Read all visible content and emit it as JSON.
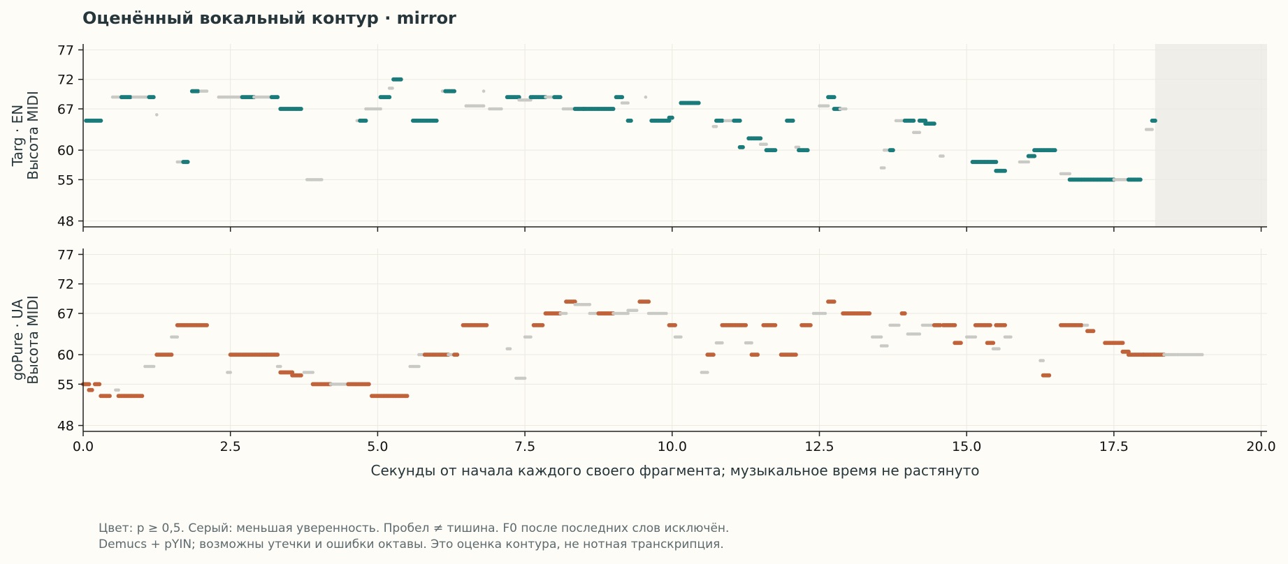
{
  "title": "Оценённый вокальный контур · mirror",
  "xlabel": "Секунды от начала каждого своего фрагмента; музыкальное время не растянуто",
  "footnote": [
    "Цвет: p ≥ 0,5. Серый: меньшая уверенность. Пробел ≠ тишина. F0 после последних слов исключён.",
    "Demucs + pYIN; возможны утечки и ошибки октавы. Это оценка контура, не нотная транскрипция."
  ],
  "chart_data": [
    {
      "type": "scatter",
      "ylabel": [
        "Targ · EN",
        "Высота MIDI"
      ],
      "xlim": [
        0,
        20.1
      ],
      "ylim": [
        47,
        78
      ],
      "xticks": [
        0,
        2.5,
        5,
        7.5,
        10,
        12.5,
        15,
        17.5,
        20
      ],
      "yticks": [
        48,
        55,
        60,
        67,
        72,
        77
      ],
      "confident_color": "#1a7b7a",
      "low_conf_color": "#c9c9c5",
      "excluded_region": {
        "x": [
          18.2,
          20.1
        ],
        "color": "#efeee9"
      },
      "segments": [
        {
          "x0": 0.05,
          "x1": 0.3,
          "y": 65,
          "c": 1
        },
        {
          "x0": 0.5,
          "x1": 0.6,
          "y": 69,
          "c": 0
        },
        {
          "x0": 0.65,
          "x1": 0.8,
          "y": 69,
          "c": 1
        },
        {
          "x0": 0.85,
          "x1": 1.1,
          "y": 69,
          "c": 0
        },
        {
          "x0": 1.12,
          "x1": 1.2,
          "y": 69,
          "c": 1
        },
        {
          "x0": 1.25,
          "x1": 1.27,
          "y": 66,
          "c": 0
        },
        {
          "x0": 1.6,
          "x1": 1.68,
          "y": 58,
          "c": 0
        },
        {
          "x0": 1.7,
          "x1": 1.78,
          "y": 58,
          "c": 1
        },
        {
          "x0": 1.85,
          "x1": 1.97,
          "y": 70,
          "c": 1
        },
        {
          "x0": 2,
          "x1": 2.1,
          "y": 70,
          "c": 0
        },
        {
          "x0": 2.3,
          "x1": 2.7,
          "y": 69,
          "c": 0
        },
        {
          "x0": 2.7,
          "x1": 2.9,
          "y": 69,
          "c": 1
        },
        {
          "x0": 2.9,
          "x1": 3.2,
          "y": 69,
          "c": 0
        },
        {
          "x0": 3.2,
          "x1": 3.3,
          "y": 69,
          "c": 1
        },
        {
          "x0": 3.35,
          "x1": 3.7,
          "y": 67,
          "c": 1
        },
        {
          "x0": 3.8,
          "x1": 4.05,
          "y": 55,
          "c": 0
        },
        {
          "x0": 4.65,
          "x1": 4.7,
          "y": 65,
          "c": 0
        },
        {
          "x0": 4.7,
          "x1": 4.8,
          "y": 65,
          "c": 1
        },
        {
          "x0": 4.8,
          "x1": 5.05,
          "y": 67,
          "c": 0
        },
        {
          "x0": 5.05,
          "x1": 5.2,
          "y": 69,
          "c": 1
        },
        {
          "x0": 5.2,
          "x1": 5.25,
          "y": 70.5,
          "c": 0
        },
        {
          "x0": 5.27,
          "x1": 5.4,
          "y": 72,
          "c": 1
        },
        {
          "x0": 5.6,
          "x1": 6.0,
          "y": 65,
          "c": 1
        },
        {
          "x0": 6.1,
          "x1": 6.15,
          "y": 70,
          "c": 0
        },
        {
          "x0": 6.15,
          "x1": 6.3,
          "y": 70,
          "c": 1
        },
        {
          "x0": 6.5,
          "x1": 6.8,
          "y": 67.5,
          "c": 0
        },
        {
          "x0": 6.8,
          "x1": 6.82,
          "y": 70,
          "c": 0
        },
        {
          "x0": 6.9,
          "x1": 7.1,
          "y": 67,
          "c": 0
        },
        {
          "x0": 7.2,
          "x1": 7.4,
          "y": 69,
          "c": 1
        },
        {
          "x0": 7.4,
          "x1": 7.6,
          "y": 68.5,
          "c": 0
        },
        {
          "x0": 7.6,
          "x1": 7.85,
          "y": 69,
          "c": 1
        },
        {
          "x0": 7.85,
          "x1": 8.0,
          "y": 69,
          "c": 0
        },
        {
          "x0": 8.0,
          "x1": 8.1,
          "y": 69,
          "c": 1
        },
        {
          "x0": 8.15,
          "x1": 8.35,
          "y": 67,
          "c": 0
        },
        {
          "x0": 8.35,
          "x1": 8.5,
          "y": 67,
          "c": 1
        },
        {
          "x0": 8.5,
          "x1": 9.0,
          "y": 67,
          "c": 1
        },
        {
          "x0": 9.05,
          "x1": 9.15,
          "y": 69,
          "c": 1
        },
        {
          "x0": 9.15,
          "x1": 9.25,
          "y": 68,
          "c": 0
        },
        {
          "x0": 9.25,
          "x1": 9.32,
          "y": 65,
          "c": 1
        },
        {
          "x0": 9.55,
          "x1": 9.57,
          "y": 69,
          "c": 0
        },
        {
          "x0": 9.65,
          "x1": 9.95,
          "y": 65,
          "c": 1
        },
        {
          "x0": 9.95,
          "x1": 10.0,
          "y": 65.5,
          "c": 1
        },
        {
          "x0": 10.15,
          "x1": 10.45,
          "y": 68,
          "c": 1
        },
        {
          "x0": 10.7,
          "x1": 10.75,
          "y": 64,
          "c": 0
        },
        {
          "x0": 10.75,
          "x1": 10.85,
          "y": 65,
          "c": 1
        },
        {
          "x0": 10.9,
          "x1": 11.05,
          "y": 65,
          "c": 0
        },
        {
          "x0": 11.05,
          "x1": 11.15,
          "y": 65,
          "c": 1
        },
        {
          "x0": 11.15,
          "x1": 11.2,
          "y": 60.5,
          "c": 1
        },
        {
          "x0": 11.3,
          "x1": 11.5,
          "y": 62,
          "c": 1
        },
        {
          "x0": 11.5,
          "x1": 11.6,
          "y": 61,
          "c": 0
        },
        {
          "x0": 11.6,
          "x1": 11.75,
          "y": 60,
          "c": 1
        },
        {
          "x0": 11.95,
          "x1": 12.05,
          "y": 65,
          "c": 1
        },
        {
          "x0": 12.1,
          "x1": 12.15,
          "y": 60.5,
          "c": 0
        },
        {
          "x0": 12.15,
          "x1": 12.3,
          "y": 60,
          "c": 1
        },
        {
          "x0": 12.5,
          "x1": 12.65,
          "y": 67.5,
          "c": 0
        },
        {
          "x0": 12.65,
          "x1": 12.75,
          "y": 69,
          "c": 1
        },
        {
          "x0": 12.75,
          "x1": 12.85,
          "y": 67,
          "c": 1
        },
        {
          "x0": 12.85,
          "x1": 12.95,
          "y": 67,
          "c": 0
        },
        {
          "x0": 13.55,
          "x1": 13.6,
          "y": 57,
          "c": 0
        },
        {
          "x0": 13.6,
          "x1": 13.7,
          "y": 60,
          "c": 0
        },
        {
          "x0": 13.7,
          "x1": 13.75,
          "y": 60,
          "c": 1
        },
        {
          "x0": 13.8,
          "x1": 13.95,
          "y": 65,
          "c": 0
        },
        {
          "x0": 13.95,
          "x1": 14.1,
          "y": 65,
          "c": 1
        },
        {
          "x0": 14.1,
          "x1": 14.2,
          "y": 63,
          "c": 0
        },
        {
          "x0": 14.2,
          "x1": 14.3,
          "y": 65,
          "c": 1
        },
        {
          "x0": 14.3,
          "x1": 14.45,
          "y": 64.5,
          "c": 1
        },
        {
          "x0": 14.55,
          "x1": 14.6,
          "y": 59,
          "c": 0
        },
        {
          "x0": 15.1,
          "x1": 15.5,
          "y": 58,
          "c": 1
        },
        {
          "x0": 15.5,
          "x1": 15.65,
          "y": 56.5,
          "c": 1
        },
        {
          "x0": 15.9,
          "x1": 16.05,
          "y": 58,
          "c": 0
        },
        {
          "x0": 16.05,
          "x1": 16.15,
          "y": 59,
          "c": 1
        },
        {
          "x0": 16.15,
          "x1": 16.5,
          "y": 60,
          "c": 1
        },
        {
          "x0": 16.6,
          "x1": 16.75,
          "y": 56,
          "c": 0
        },
        {
          "x0": 16.75,
          "x1": 17.5,
          "y": 55,
          "c": 1
        },
        {
          "x0": 17.5,
          "x1": 17.75,
          "y": 55,
          "c": 0
        },
        {
          "x0": 17.75,
          "x1": 17.95,
          "y": 55,
          "c": 1
        },
        {
          "x0": 18.05,
          "x1": 18.15,
          "y": 63.5,
          "c": 0
        },
        {
          "x0": 18.15,
          "x1": 18.2,
          "y": 65,
          "c": 1
        }
      ]
    },
    {
      "type": "scatter",
      "ylabel": [
        "goPure · UA",
        "Высота MIDI"
      ],
      "xlim": [
        0,
        20.1
      ],
      "ylim": [
        47,
        78
      ],
      "xticks": [
        0,
        2.5,
        5,
        7.5,
        10,
        12.5,
        15,
        17.5,
        20
      ],
      "xticklabels": [
        "0.0",
        "2.5",
        "5.0",
        "7.5",
        "10.0",
        "12.5",
        "15.0",
        "17.5",
        "20.0"
      ],
      "yticks": [
        48,
        55,
        60,
        67,
        72,
        77
      ],
      "confident_color": "#c0623a",
      "low_conf_color": "#c9c9c5",
      "segments": [
        {
          "x0": 0.0,
          "x1": 0.1,
          "y": 55,
          "c": 1
        },
        {
          "x0": 0.1,
          "x1": 0.15,
          "y": 54,
          "c": 1
        },
        {
          "x0": 0.2,
          "x1": 0.28,
          "y": 55,
          "c": 1
        },
        {
          "x0": 0.3,
          "x1": 0.45,
          "y": 53,
          "c": 1
        },
        {
          "x0": 0.55,
          "x1": 0.6,
          "y": 54,
          "c": 0
        },
        {
          "x0": 0.6,
          "x1": 1.0,
          "y": 53,
          "c": 1
        },
        {
          "x0": 1.05,
          "x1": 1.2,
          "y": 58,
          "c": 0
        },
        {
          "x0": 1.25,
          "x1": 1.5,
          "y": 60,
          "c": 1
        },
        {
          "x0": 1.5,
          "x1": 1.6,
          "y": 63,
          "c": 0
        },
        {
          "x0": 1.6,
          "x1": 2.1,
          "y": 65,
          "c": 1
        },
        {
          "x0": 2.45,
          "x1": 2.5,
          "y": 57,
          "c": 0
        },
        {
          "x0": 2.5,
          "x1": 3.3,
          "y": 60,
          "c": 1
        },
        {
          "x0": 3.3,
          "x1": 3.35,
          "y": 58,
          "c": 0
        },
        {
          "x0": 3.35,
          "x1": 3.55,
          "y": 57,
          "c": 1
        },
        {
          "x0": 3.55,
          "x1": 3.7,
          "y": 56.5,
          "c": 1
        },
        {
          "x0": 3.75,
          "x1": 3.9,
          "y": 57,
          "c": 0
        },
        {
          "x0": 3.9,
          "x1": 4.2,
          "y": 55,
          "c": 1
        },
        {
          "x0": 4.2,
          "x1": 4.5,
          "y": 55,
          "c": 0
        },
        {
          "x0": 4.5,
          "x1": 4.85,
          "y": 55,
          "c": 1
        },
        {
          "x0": 4.9,
          "x1": 5.5,
          "y": 53,
          "c": 1
        },
        {
          "x0": 5.55,
          "x1": 5.7,
          "y": 58,
          "c": 0
        },
        {
          "x0": 5.7,
          "x1": 5.8,
          "y": 60,
          "c": 0
        },
        {
          "x0": 5.8,
          "x1": 6.2,
          "y": 60,
          "c": 1
        },
        {
          "x0": 6.2,
          "x1": 6.3,
          "y": 60,
          "c": 0
        },
        {
          "x0": 6.3,
          "x1": 6.35,
          "y": 60,
          "c": 1
        },
        {
          "x0": 6.45,
          "x1": 6.85,
          "y": 65,
          "c": 1
        },
        {
          "x0": 7.2,
          "x1": 7.25,
          "y": 61,
          "c": 0
        },
        {
          "x0": 7.35,
          "x1": 7.5,
          "y": 56,
          "c": 0
        },
        {
          "x0": 7.5,
          "x1": 7.6,
          "y": 63,
          "c": 0
        },
        {
          "x0": 7.65,
          "x1": 7.8,
          "y": 65,
          "c": 1
        },
        {
          "x0": 7.85,
          "x1": 8.1,
          "y": 67,
          "c": 1
        },
        {
          "x0": 8.1,
          "x1": 8.2,
          "y": 67,
          "c": 0
        },
        {
          "x0": 8.2,
          "x1": 8.35,
          "y": 69,
          "c": 1
        },
        {
          "x0": 8.35,
          "x1": 8.6,
          "y": 68.5,
          "c": 0
        },
        {
          "x0": 8.6,
          "x1": 8.75,
          "y": 67,
          "c": 0
        },
        {
          "x0": 8.75,
          "x1": 9.0,
          "y": 67,
          "c": 1
        },
        {
          "x0": 9.0,
          "x1": 9.25,
          "y": 67,
          "c": 0
        },
        {
          "x0": 9.25,
          "x1": 9.4,
          "y": 67.5,
          "c": 0
        },
        {
          "x0": 9.45,
          "x1": 9.6,
          "y": 69,
          "c": 1
        },
        {
          "x0": 9.6,
          "x1": 9.9,
          "y": 67,
          "c": 0
        },
        {
          "x0": 9.95,
          "x1": 10.05,
          "y": 65,
          "c": 1
        },
        {
          "x0": 10.05,
          "x1": 10.15,
          "y": 63,
          "c": 0
        },
        {
          "x0": 10.5,
          "x1": 10.6,
          "y": 57,
          "c": 0
        },
        {
          "x0": 10.6,
          "x1": 10.7,
          "y": 60,
          "c": 1
        },
        {
          "x0": 10.75,
          "x1": 10.85,
          "y": 62,
          "c": 0
        },
        {
          "x0": 10.85,
          "x1": 11.25,
          "y": 65,
          "c": 1
        },
        {
          "x0": 11.25,
          "x1": 11.35,
          "y": 62,
          "c": 0
        },
        {
          "x0": 11.35,
          "x1": 11.45,
          "y": 60,
          "c": 1
        },
        {
          "x0": 11.55,
          "x1": 11.75,
          "y": 65,
          "c": 1
        },
        {
          "x0": 11.85,
          "x1": 12.1,
          "y": 60,
          "c": 1
        },
        {
          "x0": 12.2,
          "x1": 12.35,
          "y": 65,
          "c": 1
        },
        {
          "x0": 12.4,
          "x1": 12.6,
          "y": 67,
          "c": 0
        },
        {
          "x0": 12.65,
          "x1": 12.75,
          "y": 69,
          "c": 1
        },
        {
          "x0": 12.9,
          "x1": 13.35,
          "y": 67,
          "c": 1
        },
        {
          "x0": 13.4,
          "x1": 13.55,
          "y": 63,
          "c": 0
        },
        {
          "x0": 13.55,
          "x1": 13.65,
          "y": 61.5,
          "c": 0
        },
        {
          "x0": 13.7,
          "x1": 13.85,
          "y": 65,
          "c": 0
        },
        {
          "x0": 13.9,
          "x1": 13.97,
          "y": 67,
          "c": 1
        },
        {
          "x0": 14.0,
          "x1": 14.2,
          "y": 63.5,
          "c": 0
        },
        {
          "x0": 14.25,
          "x1": 14.45,
          "y": 65,
          "c": 0
        },
        {
          "x0": 14.45,
          "x1": 14.55,
          "y": 65,
          "c": 1
        },
        {
          "x0": 14.6,
          "x1": 14.8,
          "y": 65,
          "c": 1
        },
        {
          "x0": 14.8,
          "x1": 14.9,
          "y": 62,
          "c": 1
        },
        {
          "x0": 15.0,
          "x1": 15.15,
          "y": 63,
          "c": 0
        },
        {
          "x0": 15.15,
          "x1": 15.4,
          "y": 65,
          "c": 1
        },
        {
          "x0": 15.35,
          "x1": 15.45,
          "y": 62,
          "c": 1
        },
        {
          "x0": 15.45,
          "x1": 15.55,
          "y": 61,
          "c": 0
        },
        {
          "x0": 15.5,
          "x1": 15.65,
          "y": 65,
          "c": 1
        },
        {
          "x0": 15.65,
          "x1": 15.75,
          "y": 63,
          "c": 0
        },
        {
          "x0": 16.25,
          "x1": 16.3,
          "y": 59,
          "c": 0
        },
        {
          "x0": 16.3,
          "x1": 16.4,
          "y": 56.5,
          "c": 1
        },
        {
          "x0": 16.6,
          "x1": 16.95,
          "y": 65,
          "c": 1
        },
        {
          "x0": 17.0,
          "x1": 17.05,
          "y": 65,
          "c": 0
        },
        {
          "x0": 17.05,
          "x1": 17.15,
          "y": 64,
          "c": 1
        },
        {
          "x0": 17.35,
          "x1": 17.65,
          "y": 62,
          "c": 1
        },
        {
          "x0": 17.65,
          "x1": 17.75,
          "y": 60.5,
          "c": 1
        },
        {
          "x0": 17.75,
          "x1": 18.0,
          "y": 60,
          "c": 1
        },
        {
          "x0": 18.0,
          "x1": 18.35,
          "y": 60,
          "c": 1
        },
        {
          "x0": 18.35,
          "x1": 19.0,
          "y": 60,
          "c": 0
        }
      ]
    }
  ]
}
